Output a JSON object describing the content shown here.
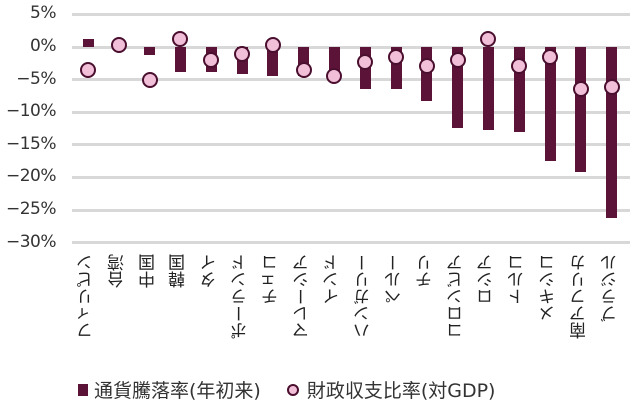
{
  "chart_data": {
    "type": "bar",
    "title": "",
    "xlabel": "",
    "ylabel": "",
    "ylim": [
      -30,
      5
    ],
    "yticks": [
      "5%",
      "0%",
      "-5%",
      "-10%",
      "-15%",
      "-20%",
      "-25%",
      "-30%"
    ],
    "ytick_values": [
      5,
      0,
      -5,
      -10,
      -15,
      -20,
      -25,
      -30
    ],
    "grid": true,
    "legend_position": "bottom",
    "categories": [
      "フィリピン",
      "台湾",
      "中国",
      "韓国",
      "タイ",
      "ポーランド",
      "チェコ",
      "マレーシア",
      "インド",
      "ハンガリー",
      "ペルー",
      "チリ",
      "コロンビア",
      "ロシア",
      "トルコ",
      "メキシコ",
      "南アフリカ",
      "ブラジル"
    ],
    "series": [
      {
        "name": "通貨騰落率(年初来)",
        "type": "bar",
        "color": "#5c1338",
        "values": [
          1.2,
          1.0,
          -1.2,
          -3.9,
          -3.8,
          -4.2,
          -4.5,
          -4.5,
          -4.3,
          -6.4,
          -6.4,
          -8.3,
          -12.4,
          -12.7,
          -13.1,
          -17.5,
          -19.2,
          -26.2
        ]
      },
      {
        "name": "財政収支比率(対GDP)",
        "type": "scatter",
        "color": "#f2bfd8",
        "values": [
          -3.5,
          0.3,
          -5.1,
          1.3,
          -2.0,
          -1.0,
          0.3,
          -3.5,
          -4.5,
          -2.3,
          -1.6,
          -2.9,
          -2.0,
          1.2,
          -2.9,
          -1.6,
          -6.4,
          -6.1
        ]
      }
    ]
  },
  "legend": {
    "bar_label": "通貨騰落率(年初来)",
    "dot_label": "財政収支比率(対GDP)"
  }
}
